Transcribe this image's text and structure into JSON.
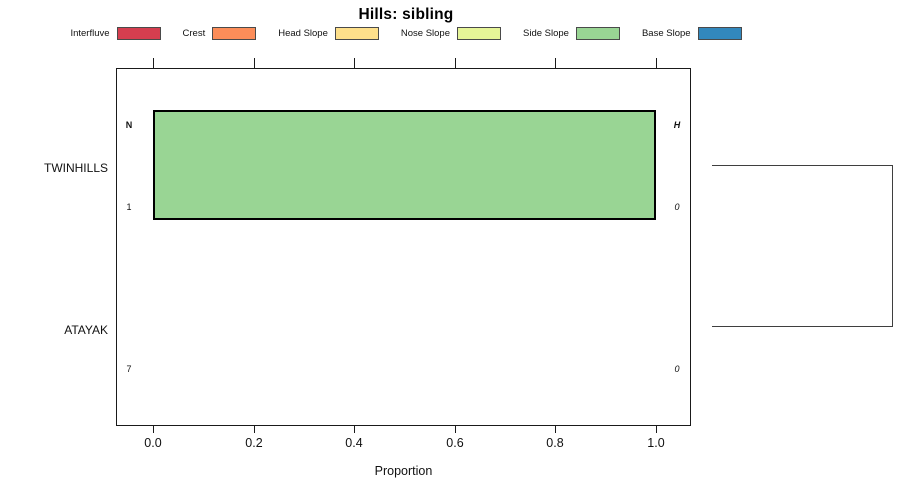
{
  "chart_data": {
    "type": "bar",
    "orientation": "horizontal",
    "title": "Hills: sibling",
    "xlabel": "Proportion",
    "xlim": [
      0,
      1
    ],
    "x_ticks": [
      0,
      0.2,
      0.4,
      0.6,
      0.8,
      1.0
    ],
    "x_tick_labels": [
      "0.0",
      "0.2",
      "0.4",
      "0.6",
      "0.8",
      "1.0"
    ],
    "grid": false,
    "legend_position": "top",
    "legend": [
      {
        "label": "Interfluve",
        "color": "#D53E4F"
      },
      {
        "label": "Crest",
        "color": "#FC8D59"
      },
      {
        "label": "Head Slope",
        "color": "#FEE08B"
      },
      {
        "label": "Nose Slope",
        "color": "#E6F598"
      },
      {
        "label": "Side Slope",
        "color": "#99D594"
      },
      {
        "label": "Base Slope",
        "color": "#3288BD"
      }
    ],
    "annotation_headers": {
      "left": "N",
      "right": "H"
    },
    "categories": [
      "TWINHILLS",
      "ATAYAK"
    ],
    "rows": [
      {
        "label": "TWINHILLS",
        "count": "1",
        "entropy": "0",
        "segments": [
          {
            "category": "Side Slope",
            "proportion": 1.0,
            "color": "#99D594"
          }
        ]
      },
      {
        "label": "ATAYAK",
        "count": "7",
        "entropy": "0",
        "segments": []
      }
    ],
    "dendrogram": {
      "joined_leaves": [
        "TWINHILLS",
        "ATAYAK"
      ]
    }
  }
}
